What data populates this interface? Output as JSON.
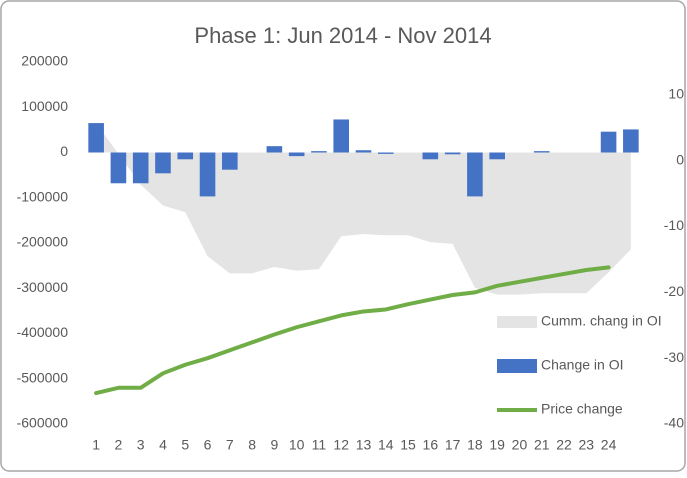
{
  "chart_data": {
    "type": "combo",
    "title": "Phase 1: Jun 2014 - Nov 2014",
    "categories": [
      "1",
      "2",
      "3",
      "4",
      "5",
      "6",
      "7",
      "8",
      "9",
      "10",
      "11",
      "12",
      "13",
      "14",
      "15",
      "16",
      "17",
      "18",
      "19",
      "20",
      "21",
      "22",
      "23",
      "24",
      null
    ],
    "ylim": [
      -600000,
      200000
    ],
    "yticks": [
      -600000,
      -500000,
      -400000,
      -300000,
      -200000,
      -100000,
      0,
      100000,
      200000
    ],
    "y2lim": [
      -40,
      15
    ],
    "y2ticks": [
      -40,
      -30,
      -20,
      -10,
      0,
      10
    ],
    "grid": false,
    "legend": "right",
    "series": [
      {
        "name": "Cumm. chang in OI",
        "type": "area",
        "color": "#e4e4e4",
        "values": [
          65000,
          -3000,
          -71000,
          -117000,
          -132000,
          -229000,
          -267000,
          -267000,
          -253000,
          -261000,
          -258000,
          -185000,
          -180000,
          -183000,
          -183000,
          -198000,
          -202000,
          -299000,
          -314000,
          -314000,
          -311000,
          -311000,
          -311000,
          -265000,
          -214000
        ]
      },
      {
        "name": "Change in OI",
        "type": "bar",
        "color": "#4472c4",
        "values": [
          65000,
          -68000,
          -68000,
          -46000,
          -15000,
          -97000,
          -38000,
          0,
          14000,
          -8000,
          3000,
          73000,
          5000,
          -3000,
          0,
          -15000,
          -4000,
          -97000,
          -15000,
          0,
          3000,
          0,
          0,
          46000,
          51000
        ]
      },
      {
        "name": "Price change",
        "type": "line",
        "color": "#70ad47",
        "axis": "y2",
        "values": [
          -35.3,
          -34.5,
          -34.5,
          -32.3,
          -31,
          -30,
          -28.8,
          -27.6,
          -26.4,
          -25.3,
          -24.4,
          -23.5,
          -22.9,
          -22.6,
          -21.8,
          -21.1,
          -20.4,
          -20,
          -19,
          -18.4,
          -17.8,
          -17.2,
          -16.6,
          -16.2,
          null
        ]
      }
    ]
  }
}
